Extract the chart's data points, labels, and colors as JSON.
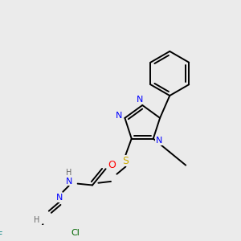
{
  "bg_color": "#ebebeb",
  "bond_color": "#000000",
  "atom_colors": {
    "N": "#0000ff",
    "O": "#ff0000",
    "S": "#ccaa00",
    "F": "#008080",
    "Cl": "#006600",
    "H": "#666666",
    "C": "#000000"
  },
  "font_size": 8,
  "line_width": 1.4,
  "figsize": [
    3.0,
    3.0
  ],
  "dpi": 100
}
